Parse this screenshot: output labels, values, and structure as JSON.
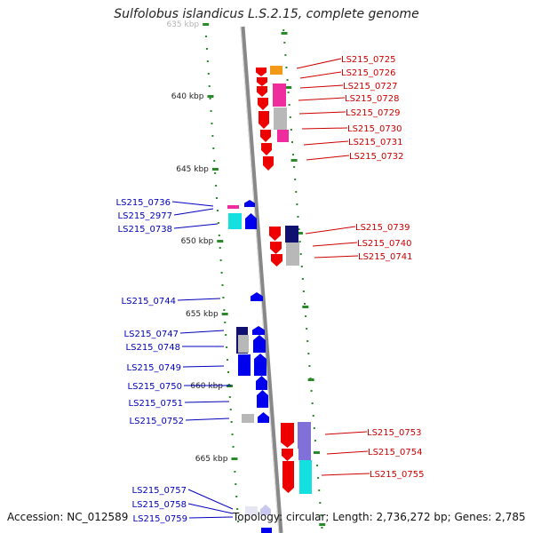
{
  "title": "Sulfolobus islandicus L.S.2.15, complete genome",
  "accession": "Accession: NC_012589",
  "summary": "Topology: circular; Length: 2,736,272 bp; Genes: 2,785",
  "kbp_marks": [
    "635 kbp",
    "640 kbp",
    "645 kbp",
    "650 kbp",
    "655 kbp",
    "660 kbp",
    "665 kbp"
  ],
  "colors": {
    "red": "#ee0000",
    "orange": "#f29a18",
    "magenta": "#ef2c9e",
    "gray": "#b8b8b8",
    "blue": "#0000ee",
    "navy": "#101070",
    "cyan": "#14e0e0",
    "lavender": "#8070d8",
    "backbone": "#888888",
    "tick": "#2a8a2a",
    "right_label": "#cc0000",
    "left_label": "#0000bb"
  },
  "right_genes": [
    {
      "id": "LS215_0725",
      "color": "orange"
    },
    {
      "id": "LS215_0726",
      "color": "red"
    },
    {
      "id": "LS215_0727",
      "color": "magenta"
    },
    {
      "id": "LS215_0728",
      "color": "red"
    },
    {
      "id": "LS215_0729",
      "color": "gray"
    },
    {
      "id": "LS215_0730",
      "color": "red"
    },
    {
      "id": "LS215_0731",
      "color": "magenta"
    },
    {
      "id": "LS215_0732",
      "color": "red"
    },
    {
      "id": "LS215_0739",
      "color": "navy"
    },
    {
      "id": "LS215_0740",
      "color": "gray"
    },
    {
      "id": "LS215_0741",
      "color": "red"
    },
    {
      "id": "LS215_0753",
      "color": "lavender"
    },
    {
      "id": "LS215_0754",
      "color": "red"
    },
    {
      "id": "LS215_0755",
      "color": "cyan"
    }
  ],
  "left_genes": [
    {
      "id": "LS215_0736",
      "color": "magenta"
    },
    {
      "id": "LS215_2977",
      "color": "blue"
    },
    {
      "id": "LS215_0738",
      "color": "cyan"
    },
    {
      "id": "LS215_0744",
      "color": "blue"
    },
    {
      "id": "LS215_0747",
      "color": "navy"
    },
    {
      "id": "LS215_0748",
      "color": "gray"
    },
    {
      "id": "LS215_0749",
      "color": "blue"
    },
    {
      "id": "LS215_0750",
      "color": "blue"
    },
    {
      "id": "LS215_0751",
      "color": "blue"
    },
    {
      "id": "LS215_0752",
      "color": "gray"
    },
    {
      "id": "LS215_0757",
      "color": "gray"
    },
    {
      "id": "LS215_0758",
      "color": "gray"
    },
    {
      "id": "LS215_0759",
      "color": "blue"
    }
  ]
}
